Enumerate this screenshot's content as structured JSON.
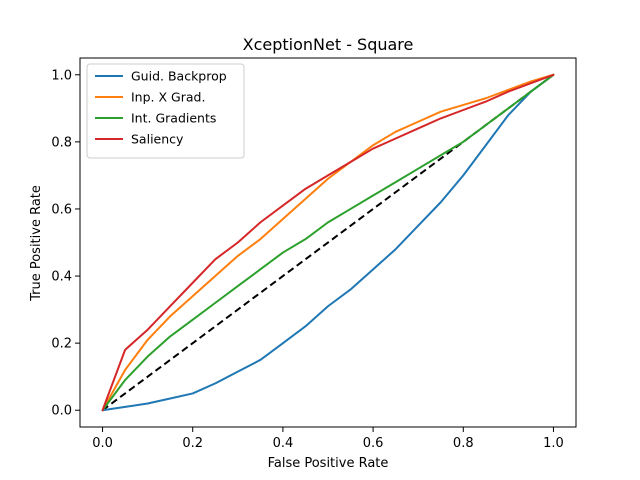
{
  "chart_data": {
    "type": "line",
    "title": "XceptionNet - Square",
    "xlabel": "False Positive Rate",
    "ylabel": "True Positive Rate",
    "xlim": [
      -0.05,
      1.05
    ],
    "ylim": [
      -0.05,
      1.05
    ],
    "xticks": [
      "0.0",
      "0.2",
      "0.4",
      "0.6",
      "0.8",
      "1.0"
    ],
    "yticks": [
      "0.0",
      "0.2",
      "0.4",
      "0.6",
      "0.8",
      "1.0"
    ],
    "grid": false,
    "legend_position": "top-left",
    "series": [
      {
        "name": "Guid. Backprop",
        "color": "#1f77b4",
        "x": [
          0.0,
          0.05,
          0.1,
          0.15,
          0.2,
          0.25,
          0.3,
          0.35,
          0.4,
          0.45,
          0.5,
          0.55,
          0.6,
          0.65,
          0.7,
          0.75,
          0.8,
          0.85,
          0.9,
          0.95,
          1.0
        ],
        "y": [
          0.0,
          0.01,
          0.02,
          0.035,
          0.05,
          0.08,
          0.115,
          0.15,
          0.2,
          0.25,
          0.31,
          0.36,
          0.42,
          0.48,
          0.55,
          0.62,
          0.7,
          0.79,
          0.88,
          0.95,
          1.0
        ]
      },
      {
        "name": "Inp. X Grad.",
        "color": "#ff7f0e",
        "x": [
          0.0,
          0.05,
          0.1,
          0.15,
          0.2,
          0.25,
          0.3,
          0.35,
          0.4,
          0.45,
          0.5,
          0.55,
          0.6,
          0.65,
          0.7,
          0.75,
          0.8,
          0.85,
          0.9,
          0.95,
          1.0
        ],
        "y": [
          0.0,
          0.12,
          0.21,
          0.28,
          0.34,
          0.4,
          0.46,
          0.51,
          0.57,
          0.63,
          0.69,
          0.74,
          0.79,
          0.83,
          0.86,
          0.89,
          0.91,
          0.93,
          0.955,
          0.98,
          1.0
        ]
      },
      {
        "name": "Int. Gradients",
        "color": "#2ca02c",
        "x": [
          0.0,
          0.05,
          0.1,
          0.15,
          0.2,
          0.25,
          0.3,
          0.35,
          0.4,
          0.45,
          0.5,
          0.55,
          0.6,
          0.65,
          0.7,
          0.75,
          0.8,
          0.85,
          0.9,
          0.95,
          1.0
        ],
        "y": [
          0.0,
          0.09,
          0.16,
          0.22,
          0.27,
          0.32,
          0.37,
          0.42,
          0.47,
          0.51,
          0.56,
          0.6,
          0.64,
          0.68,
          0.72,
          0.76,
          0.8,
          0.85,
          0.9,
          0.95,
          1.0
        ]
      },
      {
        "name": "Saliency",
        "color": "#d62728",
        "x": [
          0.0,
          0.05,
          0.1,
          0.15,
          0.2,
          0.25,
          0.3,
          0.35,
          0.4,
          0.45,
          0.5,
          0.55,
          0.6,
          0.65,
          0.7,
          0.75,
          0.8,
          0.85,
          0.9,
          0.95,
          1.0
        ],
        "y": [
          0.0,
          0.18,
          0.24,
          0.31,
          0.38,
          0.45,
          0.5,
          0.56,
          0.61,
          0.66,
          0.7,
          0.74,
          0.78,
          0.81,
          0.84,
          0.87,
          0.895,
          0.92,
          0.95,
          0.975,
          1.0
        ]
      }
    ],
    "reference_line": {
      "style": "dashed",
      "color": "#000000",
      "x": [
        0.0,
        1.0
      ],
      "y": [
        0.0,
        1.0
      ]
    }
  }
}
